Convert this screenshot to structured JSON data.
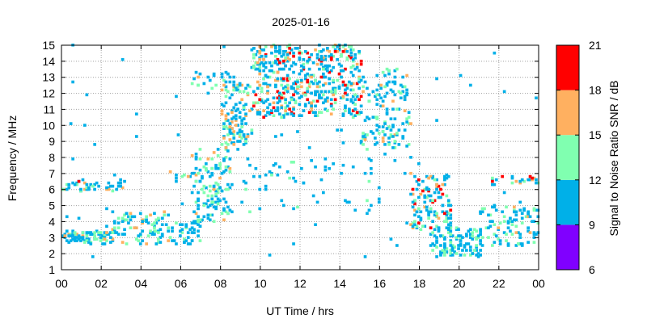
{
  "chart_data": {
    "type": "heatmap",
    "title": "2025-01-16",
    "xlabel": "UT Time / hrs",
    "ylabel": "Frequency / MHz",
    "xlim": [
      0,
      24
    ],
    "ylim": [
      1,
      15
    ],
    "x_ticks": [
      "00",
      "02",
      "04",
      "06",
      "08",
      "10",
      "12",
      "14",
      "16",
      "18",
      "20",
      "22",
      "00"
    ],
    "y_ticks": [
      "1",
      "2",
      "3",
      "4",
      "5",
      "6",
      "7",
      "8",
      "9",
      "10",
      "11",
      "12",
      "13",
      "14",
      "15"
    ],
    "grid": true,
    "colorbar": {
      "label": "Signal to Noise Ratio SNR / dB",
      "ticks": [
        "6",
        "9",
        "12",
        "15",
        "18",
        "21"
      ],
      "range": [
        6,
        21
      ],
      "bins": [
        {
          "from": 6,
          "to": 9,
          "color": "#8000ff"
        },
        {
          "from": 9,
          "to": 12,
          "color": "#00b0e8"
        },
        {
          "from": 12,
          "to": 15,
          "color": "#80ffb0"
        },
        {
          "from": 15,
          "to": 18,
          "color": "#ffb060"
        },
        {
          "from": 18,
          "to": 21,
          "color": "#ff0000"
        }
      ]
    },
    "clusters": [
      {
        "x": [
          0.0,
          2.5
        ],
        "y": [
          2.6,
          3.4
        ],
        "n": 90,
        "snr": [
          9,
          16
        ]
      },
      {
        "x": [
          0.0,
          3.0
        ],
        "y": [
          5.9,
          6.6
        ],
        "n": 45,
        "snr": [
          9,
          19
        ]
      },
      {
        "x": [
          2.5,
          5.5
        ],
        "y": [
          2.6,
          4.6
        ],
        "n": 100,
        "snr": [
          9,
          17
        ]
      },
      {
        "x": [
          5.5,
          7.0
        ],
        "y": [
          2.6,
          4.0
        ],
        "n": 40,
        "snr": [
          9,
          13
        ]
      },
      {
        "x": [
          5.4,
          6.8
        ],
        "y": [
          6.6,
          7.1
        ],
        "n": 10,
        "snr": [
          9,
          20
        ]
      },
      {
        "x": [
          6.5,
          8.5
        ],
        "y": [
          4.0,
          8.5
        ],
        "n": 140,
        "snr": [
          9,
          17
        ]
      },
      {
        "x": [
          8.0,
          9.5
        ],
        "y": [
          8.5,
          12.5
        ],
        "n": 120,
        "snr": [
          9,
          18
        ]
      },
      {
        "x": [
          9.5,
          15.0
        ],
        "y": [
          10.5,
          15.0
        ],
        "n": 520,
        "snr": [
          9,
          21
        ]
      },
      {
        "x": [
          6.5,
          9.0
        ],
        "y": [
          12.2,
          13.4
        ],
        "n": 30,
        "snr": [
          9,
          20
        ]
      },
      {
        "x": [
          15.0,
          17.5
        ],
        "y": [
          8.5,
          13.5
        ],
        "n": 140,
        "snr": [
          9,
          16
        ]
      },
      {
        "x": [
          17.5,
          19.5
        ],
        "y": [
          3.5,
          7.0
        ],
        "n": 130,
        "snr": [
          9,
          20
        ]
      },
      {
        "x": [
          18.5,
          21.0
        ],
        "y": [
          1.8,
          3.6
        ],
        "n": 120,
        "snr": [
          9,
          15
        ]
      },
      {
        "x": [
          21.0,
          24.0
        ],
        "y": [
          2.5,
          5.0
        ],
        "n": 100,
        "snr": [
          9,
          17
        ]
      },
      {
        "x": [
          21.5,
          24.0
        ],
        "y": [
          6.3,
          6.8
        ],
        "n": 25,
        "snr": [
          9,
          20
        ]
      },
      {
        "x": [
          9.0,
          16.0
        ],
        "y": [
          4.5,
          8.0
        ],
        "n": 60,
        "snr": [
          9,
          13
        ]
      },
      {
        "x": [
          0.0,
          24.0
        ],
        "y": [
          1.5,
          15.0
        ],
        "n": 70,
        "snr": [
          9,
          12
        ]
      }
    ]
  }
}
